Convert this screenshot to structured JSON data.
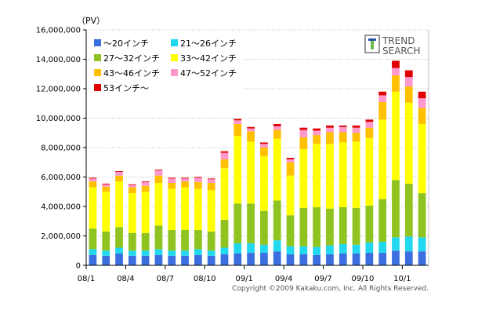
{
  "chart_data": {
    "type": "bar",
    "stacked": true,
    "unit_label": "（PV）",
    "ylim": [
      0,
      16000000
    ],
    "yticks": [
      "0",
      "2,000,000",
      "4,000,000",
      "6,000,000",
      "8,000,000",
      "10,000,000",
      "12,000,000",
      "14,000,000",
      "16,000,000"
    ],
    "ytick_values": [
      0,
      2000000,
      4000000,
      6000000,
      8000000,
      10000000,
      12000000,
      14000000,
      16000000
    ],
    "xtick_labels": [
      {
        "label": "08/1",
        "index": 0
      },
      {
        "label": "08/4",
        "index": 3
      },
      {
        "label": "08/7",
        "index": 6
      },
      {
        "label": "08/10",
        "index": 9
      },
      {
        "label": "09/1",
        "index": 12
      },
      {
        "label": "09/4",
        "index": 15
      },
      {
        "label": "09/7",
        "index": 18
      },
      {
        "label": "09/10",
        "index": 21
      },
      {
        "label": "10/1",
        "index": 24
      }
    ],
    "categories": [
      "08/1",
      "08/2",
      "08/3",
      "08/4",
      "08/5",
      "08/6",
      "08/7",
      "08/8",
      "08/9",
      "08/10",
      "08/11",
      "08/12",
      "09/1",
      "09/2",
      "09/3",
      "09/4",
      "09/5",
      "09/6",
      "09/7",
      "09/8",
      "09/9",
      "09/10",
      "09/11",
      "09/12",
      "10/1",
      "10/2"
    ],
    "series": [
      {
        "name": "～20インチ",
        "color": "#3b6fe0",
        "values": [
          700000,
          650000,
          800000,
          650000,
          650000,
          700000,
          650000,
          650000,
          700000,
          650000,
          750000,
          800000,
          850000,
          850000,
          950000,
          750000,
          750000,
          700000,
          750000,
          800000,
          800000,
          850000,
          850000,
          1000000,
          950000,
          950000
        ]
      },
      {
        "name": "21～26インチ",
        "color": "#22d8ee",
        "values": [
          400000,
          350000,
          400000,
          350000,
          350000,
          400000,
          350000,
          350000,
          400000,
          350000,
          450000,
          700000,
          650000,
          550000,
          750000,
          550000,
          550000,
          550000,
          600000,
          650000,
          600000,
          700000,
          750000,
          900000,
          1000000,
          950000
        ]
      },
      {
        "name": "27～32インチ",
        "color": "#8fc31f",
        "values": [
          1400000,
          1300000,
          1400000,
          1200000,
          1200000,
          1600000,
          1400000,
          1400000,
          1300000,
          1300000,
          1900000,
          2700000,
          2700000,
          2300000,
          2700000,
          2100000,
          2600000,
          2700000,
          2500000,
          2500000,
          2500000,
          2500000,
          2900000,
          3900000,
          3600000,
          3000000
        ]
      },
      {
        "name": "33～42インチ",
        "color": "#ffff00",
        "values": [
          2800000,
          2700000,
          3100000,
          2700000,
          2800000,
          2900000,
          2800000,
          2900000,
          2800000,
          2800000,
          3500000,
          4600000,
          4200000,
          3700000,
          4200000,
          2700000,
          4000000,
          4300000,
          4400000,
          4400000,
          4500000,
          4600000,
          5400000,
          6000000,
          5500000,
          4700000
        ]
      },
      {
        "name": "43～46インチ",
        "color": "#ffc000",
        "values": [
          400000,
          350000,
          400000,
          400000,
          400000,
          500000,
          400000,
          400000,
          450000,
          500000,
          600000,
          800000,
          700000,
          600000,
          600000,
          900000,
          800000,
          600000,
          800000,
          700000,
          600000,
          700000,
          1200000,
          1100000,
          1100000,
          1100000
        ]
      },
      {
        "name": "47～52インチ",
        "color": "#ff99cc",
        "values": [
          200000,
          150000,
          250000,
          150000,
          250000,
          350000,
          300000,
          200000,
          300000,
          250000,
          450000,
          250000,
          200000,
          250000,
          250000,
          200000,
          500000,
          300000,
          300000,
          350000,
          350000,
          400000,
          450000,
          500000,
          650000,
          650000
        ]
      },
      {
        "name": "53インチ～",
        "color": "#e00000",
        "values": [
          50000,
          50000,
          50000,
          50000,
          50000,
          50000,
          50000,
          50000,
          50000,
          50000,
          100000,
          100000,
          100000,
          100000,
          150000,
          100000,
          150000,
          150000,
          150000,
          100000,
          150000,
          150000,
          250000,
          500000,
          450000,
          450000
        ]
      }
    ]
  },
  "logo": {
    "line1": "TREND",
    "line2": "SEARCH",
    "icon": "trend-search-logo"
  },
  "copyright": "Copyright ©2009 Kakaku.com, Inc. All Rights Reserved."
}
